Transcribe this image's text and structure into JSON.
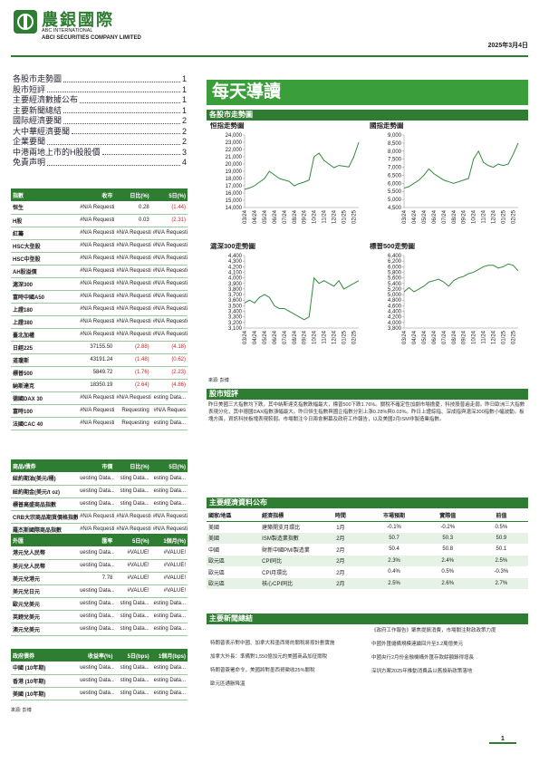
{
  "header": {
    "company": "農銀國際",
    "english1": "ABC INTERNATIONAL",
    "english2": "ABCI SECURITIES COMPANY LIMITED",
    "date": "2025年3月4日"
  },
  "toc": [
    {
      "title": "各股市走勢圖",
      "page": "1"
    },
    {
      "title": "股市短評",
      "page": "1"
    },
    {
      "title": "主要經濟數據公布",
      "page": "1"
    },
    {
      "title": "主要新聞總結",
      "page": "1"
    },
    {
      "title": "國际經濟要聞",
      "page": "2"
    },
    {
      "title": "大中華經濟要聞",
      "page": "2"
    },
    {
      "title": "企業要聞",
      "page": "2"
    },
    {
      "title": "中港兩地上市的H股股價",
      "page": "3"
    },
    {
      "title": "免責声明",
      "page": "4"
    }
  ],
  "index_table": {
    "headers": [
      "指數",
      "收市",
      "日比(%)",
      "5日(%)"
    ],
    "rows": [
      [
        "恒生",
        "#N/A Requesting",
        "0.28",
        "(1.44)"
      ],
      [
        "H股",
        "#N/A Requesting",
        "0.03",
        "(2.31)"
      ],
      [
        "紅籌",
        "#N/A Requesting",
        "#N/A Requesting",
        "#N/A Requesting"
      ],
      [
        "HSC大型股",
        "#N/A Requesting",
        "#N/A Requesting",
        "#N/A Requesting"
      ],
      [
        "HSC中型股",
        "#N/A Requesting",
        "#N/A Requesting",
        "#N/A Requesting"
      ],
      [
        "AH股溢價",
        "#N/A Requesting",
        "#N/A Requesting",
        "#N/A Requesting"
      ],
      [
        "滬深300",
        "#N/A Requesting",
        "#N/A Requesting",
        "#N/A Requesting"
      ],
      [
        "富時中國A50",
        "#N/A Requesting",
        "#N/A Requesting",
        "#N/A Requesting"
      ],
      [
        "上證180",
        "#N/A Requesting",
        "#N/A Requesting",
        "#N/A Requesting"
      ],
      [
        "上證380",
        "#N/A Requesting",
        "#N/A Requesting",
        "#N/A Requesting"
      ],
      [
        "臺北加權",
        "#N/A Requesting",
        "#N/A Requesting",
        "#N/A Requesting"
      ],
      [
        "日經225",
        "37155.50",
        "(2.88)",
        "(4.18)"
      ],
      [
        "道瓊斯",
        "43191.24",
        "(1.48)",
        "(0.62)"
      ],
      [
        "標普500",
        "5849.72",
        "(1.76)",
        "(2.23)"
      ],
      [
        "納斯達克",
        "18350.19",
        "(2.64)",
        "(4.86)"
      ],
      [
        "德國DAX 30",
        "#N/A Requesting",
        "#N/A Requesting",
        "esting Data..."
      ],
      [
        "富時100",
        "#N/A Requesting",
        "Requesting",
        "#N/A Reques"
      ],
      [
        "法國CAC 40",
        "#N/A Requesting",
        "Requesting",
        "esting Data..."
      ]
    ]
  },
  "commodity_table": {
    "headers": [
      "商品/債券",
      "市價",
      "日比(%)",
      "5日(%)"
    ],
    "rows": [
      [
        "紐約期油(美元/桶)",
        "uesting Data...",
        "sting Data...",
        "esting Data..."
      ],
      [
        "紐約期金(美元/t oz)",
        "uesting Data...",
        "sting Data...",
        "esting Data..."
      ],
      [
        "標普高盛商品指數",
        "uesting Data...",
        "sting Data...",
        "esting Data..."
      ],
      [
        "CRB大宗商品期貨價格指數",
        "#N/A Requesting",
        "#N/A Requesting",
        "#N/A Requesting"
      ],
      [
        "羅杰斯國際商品指數",
        "#N/A Requesting",
        "#N/A Requesting",
        "#N/A Requesting"
      ]
    ]
  },
  "fx_table": {
    "headers": [
      "外匯",
      "匯率",
      "5日(%)",
      "1個月(%)"
    ],
    "rows": [
      [
        "港元兌人民幣",
        "uesting Data...",
        "#VALUE!",
        "#VALUE!"
      ],
      [
        "美元兌人民幣",
        "uesting Data...",
        "#VALUE!",
        "#VALUE!"
      ],
      [
        "美元兌港元",
        "7.78",
        "#VALUE!",
        "#VALUE!"
      ],
      [
        "美元兌日元",
        "uesting Data...",
        "#VALUE!",
        "#VALUE!"
      ],
      [
        "歐元兌美元",
        "uesting Data...",
        "sting Data...",
        "esting Data..."
      ],
      [
        "英鎊兌美元",
        "uesting Data...",
        "sting Data...",
        "esting Data..."
      ],
      [
        "澳元兌美元",
        "uesting Data...",
        "sting Data...",
        "esting Data..."
      ]
    ]
  },
  "bond_table": {
    "headers": [
      "政府債券",
      "收益率(%)",
      "5日(bps)",
      "1個月(bps)"
    ],
    "rows": [
      [
        "中國 (10年期)",
        "uesting Data...",
        "sting Data...",
        "esting Data..."
      ],
      [
        "香港 (10年期)",
        "uesting Data...",
        "sting Data...",
        "esting Data..."
      ],
      [
        "美國 (10年期)",
        "uesting Data...",
        "sting Data...",
        "esting Data..."
      ]
    ]
  },
  "left_source": "來源: 彭博",
  "banner": "每天導讀",
  "stock_section": "各股市走勢圖",
  "chart_data": [
    {
      "type": "line",
      "title": "恒指走勢圖",
      "color": "#2e8b3a",
      "categories": [
        "03/24",
        null,
        "04/24",
        null,
        "05/24",
        null,
        "06/24",
        null,
        "07/24",
        null,
        "08/24",
        null,
        "09/24",
        null,
        "10/24",
        null,
        "11/24",
        null,
        "12/24",
        null,
        "01/25",
        null,
        "02/25",
        null
      ],
      "values": [
        16500,
        16700,
        17000,
        17500,
        18000,
        19000,
        18500,
        18000,
        17800,
        17600,
        17000,
        17300,
        17500,
        17800,
        21000,
        21500,
        20500,
        20000,
        19500,
        19800,
        19700,
        19600,
        21000,
        23000
      ],
      "ylim": [
        14000,
        24000
      ],
      "yticks": [
        {
          "value": 14000,
          "label": "14,000"
        },
        {
          "value": 15000,
          "label": "15,000"
        },
        {
          "value": 16000,
          "label": "16,000"
        },
        {
          "value": 17000,
          "label": "17,000"
        },
        {
          "value": 18000,
          "label": "18,000"
        },
        {
          "value": 19000,
          "label": "19,000"
        },
        {
          "value": 20000,
          "label": "20,000"
        },
        {
          "value": 21000,
          "label": "21,000"
        },
        {
          "value": 22000,
          "label": "22,000"
        },
        {
          "value": 23000,
          "label": "23,000"
        },
        {
          "value": 24000,
          "label": "24,000"
        }
      ]
    },
    {
      "type": "line",
      "title": "國指走勢圖",
      "color": "#2e8b3a",
      "categories": [
        "03/24",
        null,
        "04/24",
        null,
        "05/24",
        null,
        "06/24",
        null,
        "07/24",
        null,
        "08/24",
        null,
        "09/24",
        null,
        "10/24",
        null,
        "11/24",
        null,
        "12/24",
        null,
        "01/25",
        null,
        "02/25",
        null
      ],
      "values": [
        5700,
        5800,
        6000,
        6200,
        6500,
        6900,
        6600,
        6400,
        6200,
        6100,
        6000,
        6100,
        6200,
        6300,
        7500,
        8000,
        7300,
        7100,
        7000,
        7200,
        7100,
        7200,
        7800,
        8500
      ],
      "ylim": [
        4500,
        9000
      ],
      "yticks": [
        {
          "value": 4500,
          "label": "4,500"
        },
        {
          "value": 5000,
          "label": "5,000"
        },
        {
          "value": 5500,
          "label": "5,500"
        },
        {
          "value": 6000,
          "label": "6,000"
        },
        {
          "value": 6500,
          "label": "6,500"
        },
        {
          "value": 7000,
          "label": "7,000"
        },
        {
          "value": 7500,
          "label": "7,500"
        },
        {
          "value": 8000,
          "label": "8,000"
        },
        {
          "value": 8500,
          "label": "8,500"
        },
        {
          "value": 9000,
          "label": "9,000"
        }
      ]
    },
    {
      "type": "line",
      "title": "滬深300走勢圖",
      "color": "#2e8b3a",
      "categories": [
        "03/24",
        null,
        "04/24",
        null,
        "05/24",
        null,
        "06/24",
        null,
        "07/24",
        null,
        "08/24",
        null,
        "09/24",
        null,
        "10/24",
        null,
        "11/24",
        null,
        "12/24",
        null,
        "01/25",
        null,
        "02/25",
        null
      ],
      "values": [
        3550,
        3600,
        3550,
        3650,
        3700,
        3650,
        3500,
        3450,
        3450,
        3400,
        3350,
        3300,
        3250,
        3300,
        4000,
        3900,
        3950,
        3900,
        3850,
        3950,
        3800,
        3850,
        3900,
        3950
      ],
      "ylim": [
        3100,
        4400
      ],
      "yticks": [
        {
          "value": 3100,
          "label": "3,100"
        },
        {
          "value": 3200,
          "label": "3,200"
        },
        {
          "value": 3300,
          "label": "3,300"
        },
        {
          "value": 3400,
          "label": "3,400"
        },
        {
          "value": 3500,
          "label": "3,500"
        },
        {
          "value": 3600,
          "label": "3,600"
        },
        {
          "value": 3700,
          "label": "3,700"
        },
        {
          "value": 3800,
          "label": "3,800"
        },
        {
          "value": 3900,
          "label": "3,900"
        },
        {
          "value": 4000,
          "label": "4,000"
        },
        {
          "value": 4100,
          "label": "4,100"
        },
        {
          "value": 4200,
          "label": "4,200"
        },
        {
          "value": 4300,
          "label": "4,300"
        },
        {
          "value": 4400,
          "label": "4,400"
        }
      ]
    },
    {
      "type": "line",
      "title": "標普500走勢圖",
      "color": "#2e8b3a",
      "categories": [
        "03/24",
        null,
        "04/24",
        null,
        "05/24",
        null,
        "06/24",
        null,
        "07/24",
        null,
        "08/24",
        null,
        "09/24",
        null,
        "10/24",
        null,
        "11/24",
        null,
        "12/24",
        null,
        "01/25",
        null,
        "02/25",
        null
      ],
      "values": [
        5100,
        5250,
        5100,
        5200,
        5300,
        5450,
        5500,
        5550,
        5450,
        5300,
        5500,
        5600,
        5650,
        5750,
        5800,
        5900,
        6000,
        6050,
        6050,
        5950,
        6000,
        6100,
        6050,
        5850
      ],
      "ylim": [
        3800,
        6400
      ],
      "yticks": [
        {
          "value": 3800,
          "label": "3,800"
        },
        {
          "value": 4000,
          "label": "4,000"
        },
        {
          "value": 4200,
          "label": "4,200"
        },
        {
          "value": 4400,
          "label": "4,400"
        },
        {
          "value": 4600,
          "label": "4,600"
        },
        {
          "value": 4800,
          "label": "4,800"
        },
        {
          "value": 5000,
          "label": "5,000"
        },
        {
          "value": 5200,
          "label": "5,200"
        },
        {
          "value": 5400,
          "label": "5,400"
        },
        {
          "value": 5600,
          "label": "5,600"
        },
        {
          "value": 5800,
          "label": "5,800"
        },
        {
          "value": 6000,
          "label": "6,000"
        },
        {
          "value": 6200,
          "label": "6,200"
        },
        {
          "value": 6400,
          "label": "6,400"
        }
      ]
    }
  ],
  "chart_source": "來源: 彭博",
  "commentary": {
    "heading": "股市短評",
    "text": "昨日美國三大指數均下跌，其中納斯達克指數跌幅最大，標普500下跌1.76%。關稅不確定性加劇市場擔憂，科技股普遍走弱。昨日歐洲三大指數表現分化，其中德國DAX指數漲幅最大。昨日恒生指數與國企指數分別上漲0.28%與0.03%。昨日上證綜指、深成指與滬深300指數小幅波動。板塊方面，資訊科技板塊表現較弱。市場關注今日兩會開幕及政府工作報告，以及美國2月ISM非製造業指數。"
  },
  "economic": {
    "heading": "主要經濟資料公布",
    "headers": [
      "國家/地區",
      "經濟指標",
      "時間",
      "市場預期",
      "實際值",
      "前值"
    ],
    "rows": [
      [
        "美國",
        "建築開支月環比",
        "1月",
        "-0.1%",
        "-0.2%",
        "0.5%"
      ],
      [
        "美國",
        "ISM製造業指數",
        "2月",
        "50.7",
        "50.3",
        "50.9"
      ],
      [
        "中國",
        "財新中國PMI製造業",
        "2月",
        "50.4",
        "50.8",
        "50.1"
      ],
      [
        "歐元區",
        "CPI同比",
        "2月",
        "2.3%",
        "2.4%",
        "2.5%"
      ],
      [
        "歐元區",
        "CPI月環比",
        "2月",
        "0.4%",
        "0.5%",
        "-0.3%"
      ],
      [
        "歐元區",
        "核心CPI同比",
        "2月",
        "2.5%",
        "2.6%",
        "2.7%"
      ]
    ]
  },
  "news": {
    "heading": "主要新聞總結",
    "left": [
      "特朗普表示對中國、加拿大和墨西哥的關稅將按計劃實施",
      "加拿大外長：準備對1,550億加元的美國商品加征關稅",
      "特朗普簽署命令，美國將對墨西哥徵收25%關稅",
      "歐元區通脹降溫"
    ],
    "right": [
      "《政府工作報告》聚焦提振消費，市場關注財政政策力度",
      "中國外匯儲備規模連續回升至3.2萬億美元",
      "中國央行2月份金融機構外匯存款餘額錄得增長",
      "深圳方案2025年推動消費品以舊換新政策落地"
    ]
  },
  "page_number": "1"
}
